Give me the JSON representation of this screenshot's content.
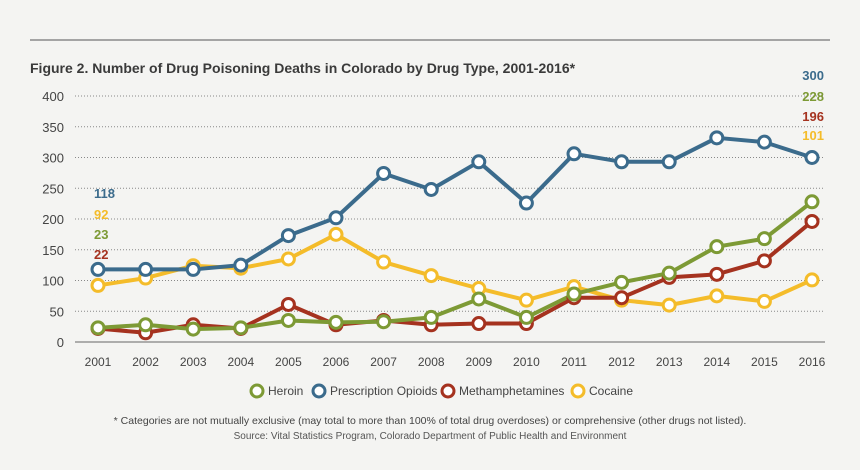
{
  "chart_data": {
    "type": "line",
    "title": "Figure 2. Number of Drug Poisoning Deaths in Colorado by Drug Type, 2001-2016*",
    "xlabel": "",
    "ylabel": "",
    "ylim": [
      0,
      400
    ],
    "yticks": [
      0,
      50,
      100,
      150,
      200,
      250,
      300,
      350,
      400
    ],
    "grid": true,
    "legend_position": "bottom",
    "categories": [
      "2001",
      "2002",
      "2003",
      "2004",
      "2005",
      "2006",
      "2007",
      "2008",
      "2009",
      "2010",
      "2011",
      "2012",
      "2013",
      "2014",
      "2015",
      "2016"
    ],
    "series": [
      {
        "name": "Heroin",
        "color": "#7d9a35",
        "values": [
          23,
          28,
          21,
          23,
          35,
          32,
          33,
          40,
          70,
          40,
          78,
          97,
          112,
          155,
          168,
          228
        ]
      },
      {
        "name": "Prescription Opioids",
        "color": "#3b6b8c",
        "values": [
          118,
          118,
          118,
          125,
          173,
          202,
          274,
          248,
          293,
          226,
          306,
          293,
          293,
          332,
          325,
          300
        ]
      },
      {
        "name": "Methamphetamines",
        "color": "#a5321f",
        "values": [
          22,
          15,
          28,
          22,
          61,
          28,
          35,
          28,
          30,
          30,
          72,
          72,
          105,
          110,
          132,
          196
        ]
      },
      {
        "name": "Cocaine",
        "color": "#f4bc2a",
        "values": [
          92,
          104,
          124,
          120,
          135,
          175,
          130,
          108,
          87,
          68,
          90,
          68,
          60,
          75,
          66,
          101
        ]
      }
    ],
    "start_labels": [
      {
        "text": "118",
        "color": "#3b6b8c"
      },
      {
        "text": "92",
        "color": "#f4bc2a"
      },
      {
        "text": "23",
        "color": "#7d9a35"
      },
      {
        "text": "22",
        "color": "#a5321f"
      }
    ],
    "end_labels": [
      {
        "text": "300",
        "color": "#3b6b8c"
      },
      {
        "text": "228",
        "color": "#7d9a35"
      },
      {
        "text": "196",
        "color": "#a5321f"
      },
      {
        "text": "101",
        "color": "#f4bc2a"
      }
    ]
  },
  "footnote": "* Categories are not mutually exclusive (may total to more than 100% of total drug overdoses) or comprehensive (other drugs not listed).",
  "source": "Source: Vital Statistics Program, Colorado Department of Public Health and Environment"
}
